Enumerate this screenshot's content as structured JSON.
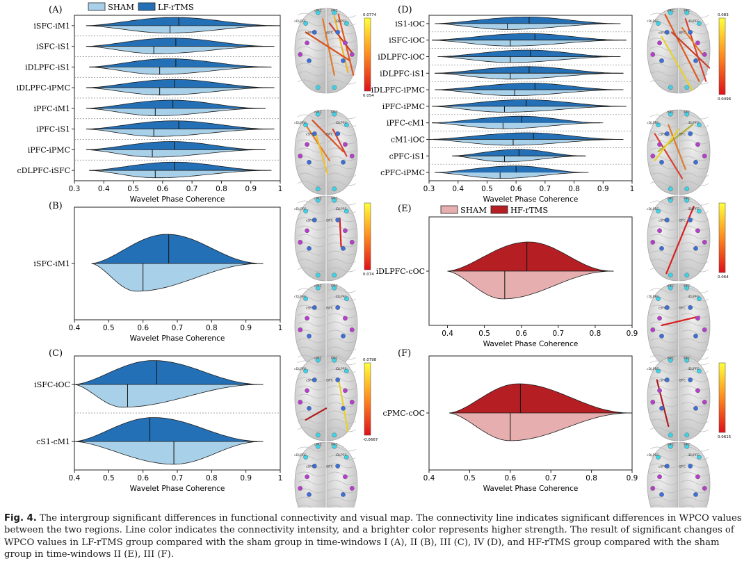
{
  "colors": {
    "lf_dark": "#2470b6",
    "lf_light": "#a8d0e8",
    "hf_dark": "#b51f24",
    "hf_light": "#e6aeae",
    "brain": "#d6d6d6",
    "node_cyan": "#3fd2e6",
    "node_magenta": "#b43fc8",
    "node_blue": "#3f6fd6"
  },
  "legends": {
    "lf": {
      "sham": "SHAM",
      "active": "LF-rTMS"
    },
    "hf": {
      "sham": "SHAM",
      "active": "HF-rTMS"
    }
  },
  "brain_labels": [
    "cPFC",
    "cDLPFC",
    "iPFC",
    "iDLPFC",
    "cSFC",
    "iSFC",
    "cPMC",
    "iPMC",
    "cS1",
    "iS1",
    "cM1",
    "iM1",
    "cOC",
    "iOC"
  ],
  "chart_data": [
    {
      "id": "A",
      "type": "violin",
      "label": "(A)",
      "xlabel": "Wavelet Phase Coherence",
      "xlim": [
        0.3,
        1.0
      ],
      "ticks": [
        0.3,
        0.4,
        0.5,
        0.6,
        0.7,
        0.8,
        0.9,
        1.0
      ],
      "legend": "lf",
      "colorbar": {
        "max": "0.0774",
        "min": "0.054"
      },
      "rows": [
        {
          "label": "iSFC-iM1",
          "lo": 0.34,
          "hi": 1.0,
          "active_median": 0.655,
          "sham_median": 0.625,
          "active_peak": 0.64,
          "sham_peak": 0.62
        },
        {
          "label": "iSFC-iS1",
          "lo": 0.34,
          "hi": 0.98,
          "active_median": 0.645,
          "sham_median": 0.57,
          "active_peak": 0.63,
          "sham_peak": 0.58
        },
        {
          "label": "iDLPFC-iS1",
          "lo": 0.35,
          "hi": 0.97,
          "active_median": 0.645,
          "sham_median": 0.59,
          "active_peak": 0.62,
          "sham_peak": 0.59
        },
        {
          "label": "iDLPFC-iPMC",
          "lo": 0.34,
          "hi": 0.98,
          "active_median": 0.64,
          "sham_median": 0.59,
          "active_peak": 0.64,
          "sham_peak": 0.6
        },
        {
          "label": "iPFC-iM1",
          "lo": 0.34,
          "hi": 0.95,
          "active_median": 0.635,
          "sham_median": 0.575,
          "active_peak": 0.63,
          "sham_peak": 0.58
        },
        {
          "label": "iPFC-iS1",
          "lo": 0.34,
          "hi": 0.98,
          "active_median": 0.655,
          "sham_median": 0.57,
          "active_peak": 0.64,
          "sham_peak": 0.58
        },
        {
          "label": "iPFC-iPMC",
          "lo": 0.34,
          "hi": 0.95,
          "active_median": 0.64,
          "sham_median": 0.565,
          "active_peak": 0.63,
          "sham_peak": 0.57
        },
        {
          "label": "cDLPFC-iSFC",
          "lo": 0.35,
          "hi": 0.97,
          "active_median": 0.64,
          "sham_median": 0.575,
          "active_peak": 0.64,
          "sham_peak": 0.58
        }
      ]
    },
    {
      "id": "B",
      "type": "violin",
      "label": "(B)",
      "xlabel": "Wavelet Phase Coherence",
      "xlim": [
        0.4,
        1.0
      ],
      "ticks": [
        0.4,
        0.5,
        0.6,
        0.7,
        0.8,
        0.9,
        1.0
      ],
      "colorbar": {
        "max": "",
        "min": "0.074"
      },
      "rows": [
        {
          "label": "iSFC-iM1",
          "lo": 0.45,
          "hi": 0.95,
          "active_median": 0.675,
          "sham_median": 0.6,
          "active_peak": 0.67,
          "sham_peak": 0.58
        }
      ]
    },
    {
      "id": "C",
      "type": "violin",
      "label": "(C)",
      "xlabel": "Wavelet Phase Coherence",
      "xlim": [
        0.4,
        1.0
      ],
      "ticks": [
        0.4,
        0.5,
        0.6,
        0.7,
        0.8,
        0.9,
        1.0
      ],
      "colorbar": {
        "max": "0.0798",
        "min": "-0.0667"
      },
      "rows": [
        {
          "label": "iSFC-iOC",
          "lo": 0.4,
          "hi": 0.95,
          "active_median": 0.64,
          "sham_median": 0.555,
          "active_peak": 0.63,
          "sham_peak": 0.54
        },
        {
          "label": "cS1-cM1",
          "lo": 0.4,
          "hi": 0.95,
          "active_median": 0.62,
          "sham_median": 0.69,
          "active_peak": 0.63,
          "sham_peak": 0.69
        }
      ]
    },
    {
      "id": "D",
      "type": "violin",
      "label": "(D)",
      "xlabel": "Wavelet Phase Coherence",
      "xlim": [
        0.3,
        1.0
      ],
      "ticks": [
        0.3,
        0.4,
        0.5,
        0.6,
        0.7,
        0.8,
        0.9,
        1.0
      ],
      "colorbar": {
        "max": "0.083",
        "min": "0.0496"
      },
      "rows": [
        {
          "label": "iS1-iOC",
          "lo": 0.32,
          "hi": 0.96,
          "active_median": 0.645,
          "sham_median": 0.57,
          "active_peak": 0.64,
          "sham_peak": 0.57
        },
        {
          "label": "iSFC-iOC",
          "lo": 0.31,
          "hi": 0.98,
          "active_median": 0.665,
          "sham_median": 0.58,
          "active_peak": 0.64,
          "sham_peak": 0.58
        },
        {
          "label": "iDLPFC-iOC",
          "lo": 0.33,
          "hi": 0.96,
          "active_median": 0.65,
          "sham_median": 0.58,
          "active_peak": 0.64,
          "sham_peak": 0.58
        },
        {
          "label": "iDLPFC-iS1",
          "lo": 0.32,
          "hi": 0.97,
          "active_median": 0.645,
          "sham_median": 0.58,
          "active_peak": 0.64,
          "sham_peak": 0.58
        },
        {
          "label": "iDLPFC-iPMC",
          "lo": 0.32,
          "hi": 0.97,
          "active_median": 0.665,
          "sham_median": 0.595,
          "active_peak": 0.65,
          "sham_peak": 0.59
        },
        {
          "label": "iPFC-iPMC",
          "lo": 0.31,
          "hi": 0.98,
          "active_median": 0.635,
          "sham_median": 0.56,
          "active_peak": 0.63,
          "sham_peak": 0.56
        },
        {
          "label": "iPFC-cM1",
          "lo": 0.31,
          "hi": 0.9,
          "active_median": 0.62,
          "sham_median": 0.555,
          "active_peak": 0.62,
          "sham_peak": 0.56
        },
        {
          "label": "cM1-iOC",
          "lo": 0.3,
          "hi": 0.97,
          "active_median": 0.66,
          "sham_median": 0.59,
          "active_peak": 0.64,
          "sham_peak": 0.58
        },
        {
          "label": "cPFC-iS1",
          "lo": 0.38,
          "hi": 0.84,
          "active_median": 0.61,
          "sham_median": 0.56,
          "active_peak": 0.61,
          "sham_peak": 0.56
        },
        {
          "label": "cPFC-iPMC",
          "lo": 0.32,
          "hi": 0.85,
          "active_median": 0.6,
          "sham_median": 0.545,
          "active_peak": 0.6,
          "sham_peak": 0.55
        }
      ]
    },
    {
      "id": "E",
      "type": "violin",
      "label": "(E)",
      "xlabel": "Wavelet Phase Coherence",
      "xlim": [
        0.35,
        0.9
      ],
      "ticks": [
        0.4,
        0.5,
        0.6,
        0.7,
        0.8,
        0.9
      ],
      "legend": "hf",
      "colorbar": {
        "max": "",
        "min": "0.064"
      },
      "rows": [
        {
          "label": "iDLPFC-cOC",
          "lo": 0.4,
          "hi": 0.85,
          "active_median": 0.615,
          "sham_median": 0.555,
          "active_peak": 0.62,
          "sham_peak": 0.55
        }
      ]
    },
    {
      "id": "F",
      "type": "violin",
      "label": "(F)",
      "xlabel": "Wavelet Phase Coherence",
      "xlim": [
        0.4,
        0.9
      ],
      "ticks": [
        0.4,
        0.5,
        0.6,
        0.7,
        0.8,
        0.9
      ],
      "colorbar": {
        "max": "",
        "min": "0.0615"
      },
      "rows": [
        {
          "label": "cPMC-cOC",
          "lo": 0.45,
          "hi": 0.9,
          "active_median": 0.625,
          "sham_median": 0.6,
          "active_peak": 0.62,
          "sham_peak": 0.6
        }
      ]
    }
  ],
  "caption": {
    "label": "Fig. 4.",
    "text": "The intergroup significant differences in functional connectivity and visual map. The connectivity line indicates significant differences in WPCO values between the two regions. Line color indicates the connectivity intensity, and a brighter color represents higher strength. The result of significant changes of WPCO values in LF-rTMS group compared with the sham group in time-windows I (A), II (B), III (C), IV (D), and HF-rTMS group compared with the sham group in time-windows II (E), III (F)."
  }
}
